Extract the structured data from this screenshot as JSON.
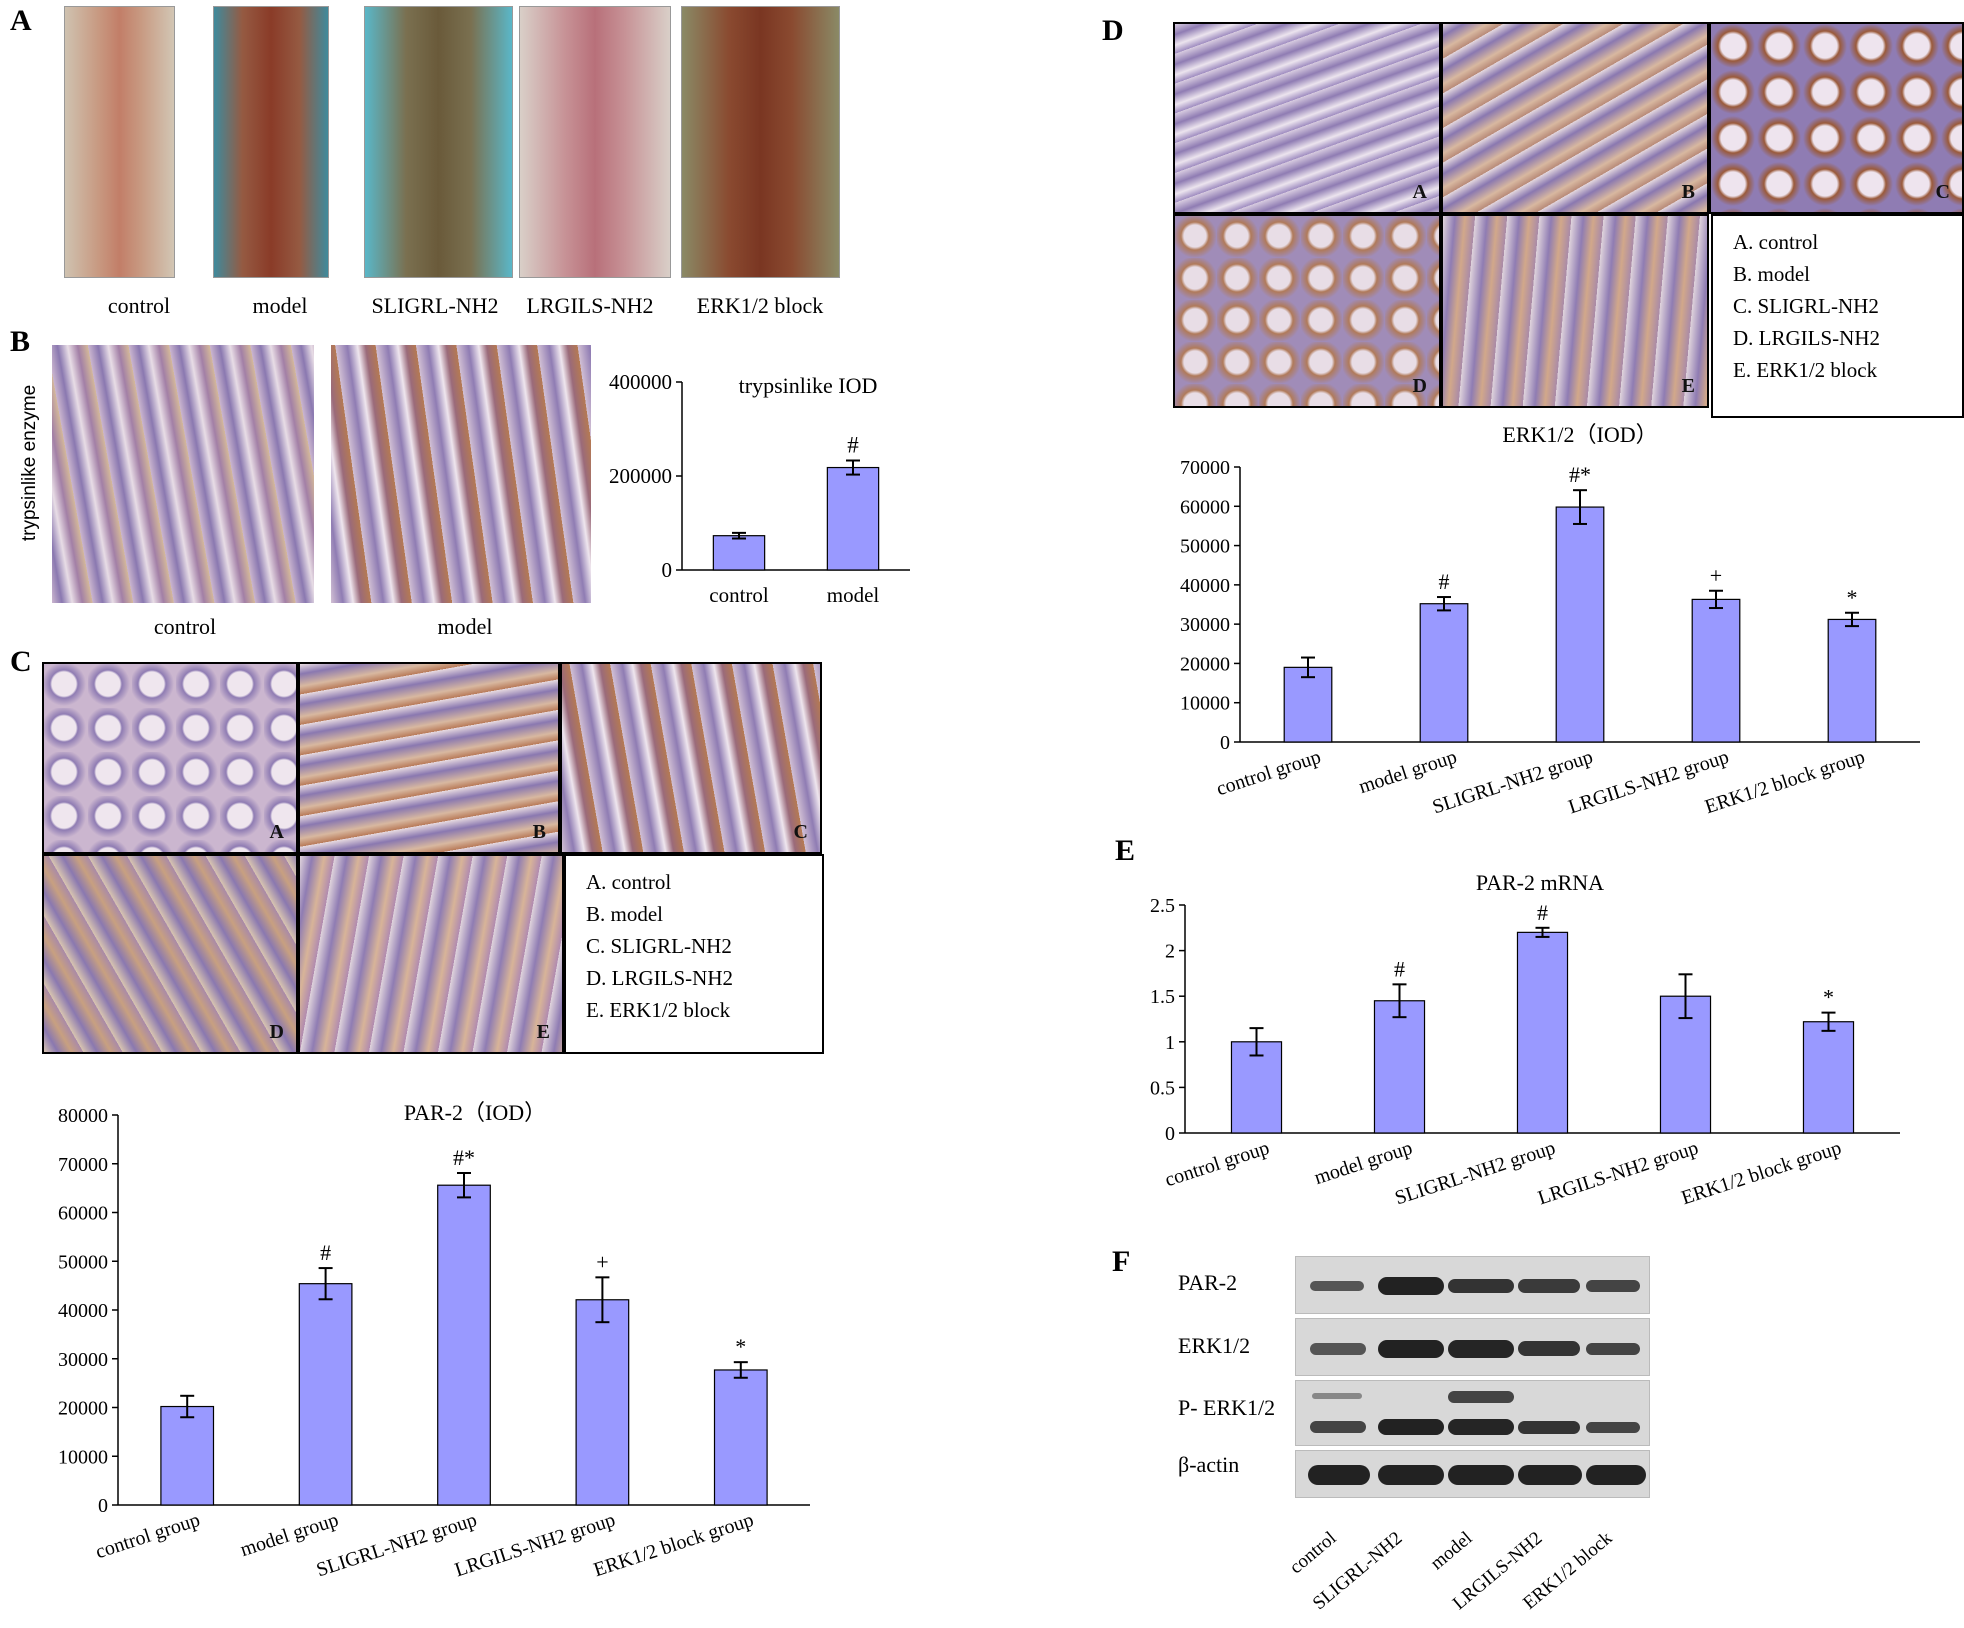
{
  "panels": {
    "A": {
      "letter": "A",
      "labels": [
        "control",
        "model",
        "SLIGRL-NH2",
        "LRGILS-NH2",
        "ERK1/2 block"
      ]
    },
    "B": {
      "letter": "B",
      "ylabel": "trypsinlike enzyme",
      "img_labels": [
        "control",
        "model"
      ]
    },
    "C": {
      "letter": "C",
      "img_letters": [
        "A",
        "B",
        "C",
        "D",
        "E"
      ],
      "legend": [
        "A. control",
        "B. model",
        "C. SLIGRL-NH2",
        "D. LRGILS-NH2",
        "E. ERK1/2 block"
      ]
    },
    "D": {
      "letter": "D",
      "img_letters": [
        "A",
        "B",
        "C",
        "D",
        "E"
      ],
      "legend": [
        "A. control",
        "B. model",
        "C. SLIGRL-NH2",
        "D. LRGILS-NH2",
        "E. ERK1/2 block"
      ]
    },
    "E": {
      "letter": "E"
    },
    "F": {
      "letter": "F",
      "rows": [
        "PAR-2",
        "ERK1/2",
        "P- ERK1/2",
        "β-actin"
      ],
      "lanes": [
        "control",
        "SLIGRL-NH2",
        "model",
        "LRGILS-NH2",
        "ERK1/2 block"
      ]
    }
  },
  "colors": {
    "bar": "#9999ff",
    "bar_border": "#000000"
  },
  "chart_data": [
    {
      "id": "trypsin",
      "type": "bar",
      "title": "trypsinlike IOD",
      "categories": [
        "control",
        "model"
      ],
      "values": [
        73000,
        218000
      ],
      "errors": [
        6000,
        15000
      ],
      "annotations": [
        "",
        "#"
      ],
      "ylim": [
        0,
        400000
      ],
      "yticks": [
        0,
        200000,
        400000
      ]
    },
    {
      "id": "par2",
      "type": "bar",
      "title": "PAR-2（IOD）",
      "categories": [
        "control group",
        "model group",
        "SLIGRL-NH2 group",
        "LRGILS-NH2 group",
        "ERK1/2 block group"
      ],
      "values": [
        20200,
        45400,
        65600,
        42100,
        27700
      ],
      "errors": [
        2200,
        3200,
        2500,
        4600,
        1600
      ],
      "annotations": [
        "",
        "#",
        "#*",
        "+",
        "*"
      ],
      "ylim": [
        0,
        80000
      ],
      "yticks": [
        0,
        10000,
        20000,
        30000,
        40000,
        50000,
        60000,
        70000,
        80000
      ]
    },
    {
      "id": "erk",
      "type": "bar",
      "title": "ERK1/2（IOD）",
      "categories": [
        "control group",
        "model group",
        "SLIGRL-NH2 group",
        "LRGILS-NH2 group",
        "ERK1/2 block group"
      ],
      "values": [
        19000,
        35200,
        59800,
        36300,
        31200
      ],
      "errors": [
        2500,
        1700,
        4300,
        2200,
        1700
      ],
      "annotations": [
        "",
        "#",
        "#*",
        "+",
        "*"
      ],
      "ylim": [
        0,
        70000
      ],
      "yticks": [
        0,
        10000,
        20000,
        30000,
        40000,
        50000,
        60000,
        70000
      ]
    },
    {
      "id": "mrna",
      "type": "bar",
      "title": "PAR-2 mRNA",
      "categories": [
        "control group",
        "model group",
        "SLIGRL-NH2 group",
        "LRGILS-NH2 group",
        "ERK1/2 block group"
      ],
      "values": [
        1.0,
        1.45,
        2.2,
        1.5,
        1.22
      ],
      "errors": [
        0.15,
        0.18,
        0.05,
        0.24,
        0.1
      ],
      "annotations": [
        "",
        "#",
        "#",
        "",
        "*"
      ],
      "ylim": [
        0,
        2.5
      ],
      "yticks": [
        0,
        0.5,
        1,
        1.5,
        2,
        2.5
      ]
    }
  ]
}
